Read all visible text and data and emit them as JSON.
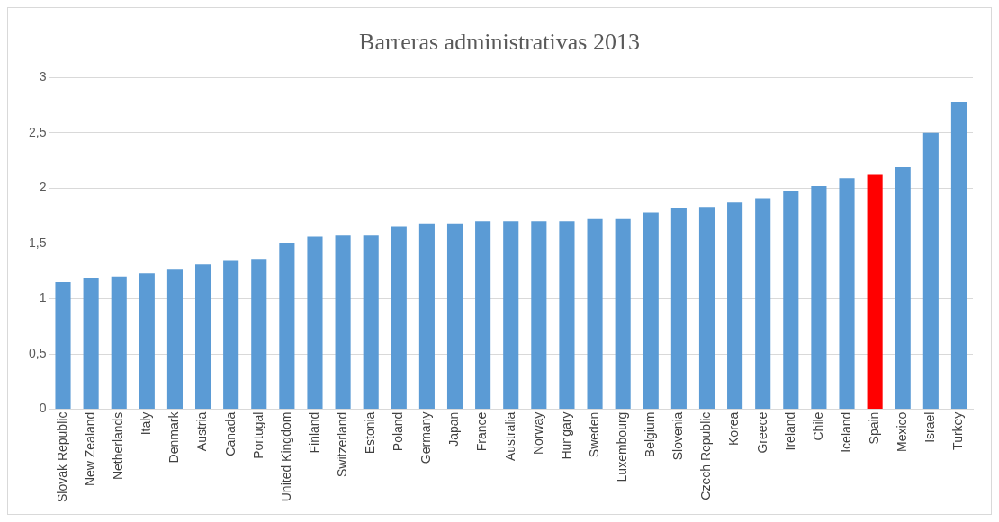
{
  "chart_data": {
    "type": "bar",
    "title": "Barreras administrativas 2013",
    "categories": [
      "Slovak Republic",
      "New Zealand",
      "Netherlands",
      "Italy",
      "Denmark",
      "Austria",
      "Canada",
      "Portugal",
      "United Kingdom",
      "Finland",
      "Switzerland",
      "Estonia",
      "Poland",
      "Germany",
      "Japan",
      "France",
      "Australia",
      "Norway",
      "Hungary",
      "Sweden",
      "Luxembourg",
      "Belgium",
      "Slovenia",
      "Czech Republic",
      "Korea",
      "Greece",
      "Ireland",
      "Chile",
      "Iceland",
      "Spain",
      "Mexico",
      "Israel",
      "Turkey"
    ],
    "values": [
      1.15,
      1.19,
      1.2,
      1.23,
      1.27,
      1.31,
      1.35,
      1.36,
      1.5,
      1.56,
      1.57,
      1.57,
      1.65,
      1.68,
      1.68,
      1.7,
      1.7,
      1.7,
      1.7,
      1.72,
      1.72,
      1.78,
      1.82,
      1.83,
      1.87,
      1.91,
      1.97,
      2.02,
      2.09,
      2.12,
      2.19,
      2.5,
      2.78
    ],
    "colors": [
      "#5b9bd5",
      "#5b9bd5",
      "#5b9bd5",
      "#5b9bd5",
      "#5b9bd5",
      "#5b9bd5",
      "#5b9bd5",
      "#5b9bd5",
      "#5b9bd5",
      "#5b9bd5",
      "#5b9bd5",
      "#5b9bd5",
      "#5b9bd5",
      "#5b9bd5",
      "#5b9bd5",
      "#5b9bd5",
      "#5b9bd5",
      "#5b9bd5",
      "#5b9bd5",
      "#5b9bd5",
      "#5b9bd5",
      "#5b9bd5",
      "#5b9bd5",
      "#5b9bd5",
      "#5b9bd5",
      "#5b9bd5",
      "#5b9bd5",
      "#5b9bd5",
      "#5b9bd5",
      "#ff0000",
      "#5b9bd5",
      "#5b9bd5",
      "#5b9bd5"
    ],
    "ylim": [
      0,
      3
    ],
    "yticks": [
      0,
      {
        "value": 0.5,
        "label": "0,5"
      },
      1,
      {
        "value": 1.5,
        "label": "1,5"
      },
      2,
      {
        "value": 2.5,
        "label": "2,5"
      },
      3
    ],
    "grid": "y",
    "legend": false
  }
}
